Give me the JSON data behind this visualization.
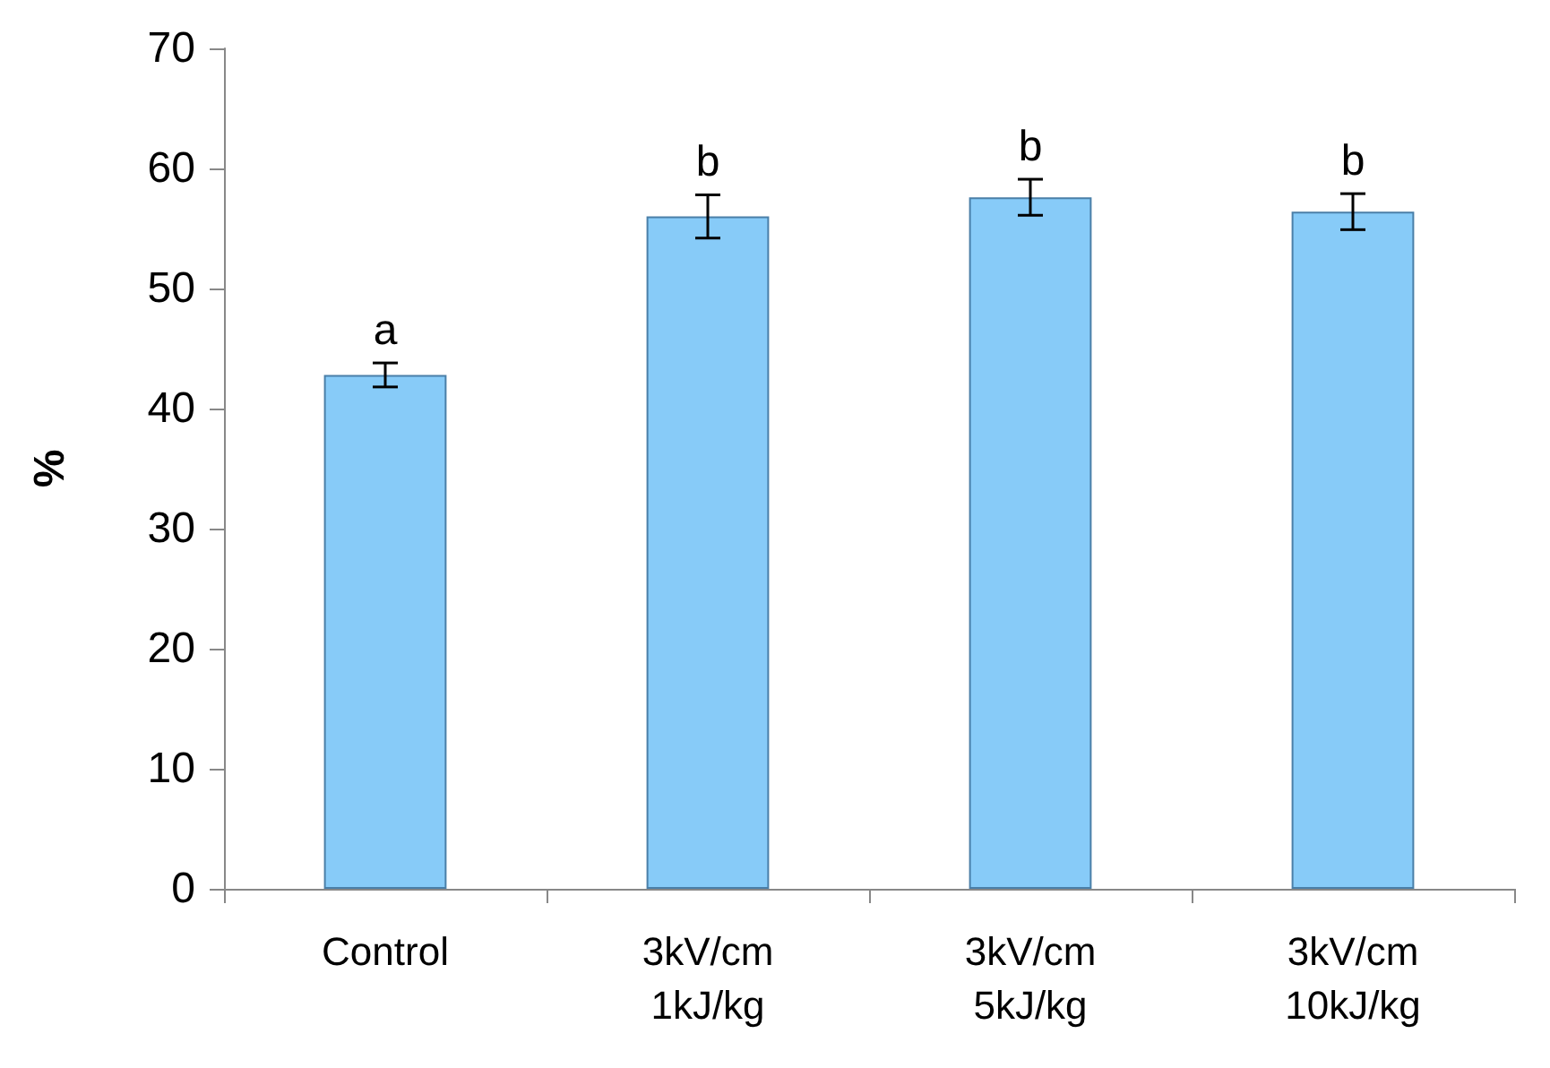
{
  "chart_data": {
    "type": "bar",
    "ylabel": "%",
    "categories": [
      "Control",
      "3kV/cm\n1kJ/kg",
      "3kV/cm\n5kJ/kg",
      "3kV/cm\n10kJ/kg"
    ],
    "values": [
      42.8,
      56.0,
      57.6,
      56.4
    ],
    "errors": [
      1.0,
      1.8,
      1.5,
      1.5
    ],
    "color": "#87cbf8",
    "ylim": [
      0,
      70
    ],
    "yticks": [
      0,
      10,
      20,
      30,
      40,
      50,
      60,
      70
    ],
    "grid": false,
    "annotations": [
      {
        "text": "a",
        "x": "Control",
        "y": 43.8
      },
      {
        "text": "b",
        "x": "3kV/cm\n1kJ/kg",
        "y": 57.8
      },
      {
        "text": "b",
        "x": "3kV/cm\n5kJ/kg",
        "y": 59.1
      },
      {
        "text": "b",
        "x": "3kV/cm\n10kJ/kg",
        "y": 57.9
      }
    ]
  }
}
